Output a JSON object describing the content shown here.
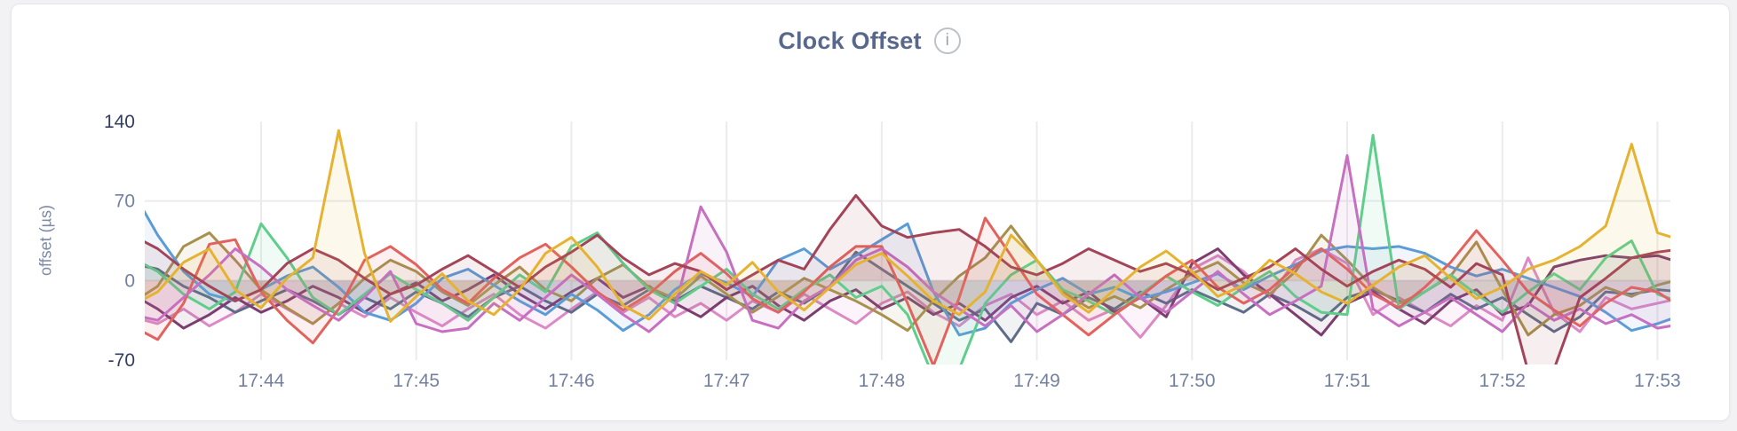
{
  "header": {
    "info_glyph": "i"
  },
  "chart_data": {
    "type": "line",
    "title": "Clock Offset",
    "xlabel": "",
    "ylabel": "offset (µs)",
    "ylim": [
      -70,
      140
    ],
    "y_ticks": [
      140,
      70,
      0,
      -70
    ],
    "x_ticks": [
      "17:44",
      "17:45",
      "17:46",
      "17:47",
      "17:48",
      "17:49",
      "17:50",
      "17:51",
      "17:52",
      "17:53"
    ],
    "x_start": "17:43:10",
    "x_interval_seconds": 10,
    "grid": "vertical gridline per minute; horizontal gridlines at 70 and 0",
    "legend": "none",
    "area_fill_opacity": 0.09,
    "series": [
      {
        "name": "pink",
        "color": "#DC8AC5",
        "values": [
          -32,
          -38,
          -25,
          -40,
          -28,
          -12,
          -25,
          -38,
          -20,
          -32,
          -15,
          -28,
          -40,
          -25,
          -12,
          -30,
          -42,
          -25,
          -10,
          -28,
          -15,
          -32,
          -20,
          -35,
          -18,
          -28,
          -12,
          -25,
          -38,
          -20,
          -10,
          -28,
          -40,
          -22,
          -12,
          -30,
          -18,
          -35,
          -25,
          -50,
          -22,
          10,
          22,
          8,
          -15,
          18,
          28,
          15,
          -30,
          -15,
          -28,
          -40,
          -22,
          -35,
          20,
          -28,
          -45,
          -15,
          -25,
          -20,
          -15
        ]
      },
      {
        "name": "slate",
        "color": "#5E6C88",
        "values": [
          15,
          10,
          -5,
          -15,
          -28,
          -18,
          -8,
          -18,
          -30,
          -15,
          -25,
          -10,
          -20,
          -32,
          -15,
          -5,
          -18,
          -28,
          -12,
          -22,
          -8,
          -18,
          -5,
          -15,
          -25,
          -10,
          -20,
          -5,
          25,
          10,
          -5,
          -20,
          -35,
          -25,
          -54,
          -20,
          -30,
          -15,
          -25,
          -10,
          -20,
          -8,
          -18,
          -28,
          -12,
          -22,
          -35,
          -15,
          -8,
          -18,
          -28,
          -12,
          -25,
          -15,
          -30,
          -45,
          -32,
          -10,
          -12,
          -8,
          -10
        ]
      },
      {
        "name": "purple",
        "color": "#7C3D6F",
        "values": [
          -12,
          -25,
          -42,
          -30,
          -15,
          -28,
          -18,
          -5,
          -15,
          -28,
          -12,
          -2,
          -18,
          -8,
          5,
          -12,
          -25,
          -10,
          2,
          -15,
          -5,
          -20,
          -32,
          -15,
          -5,
          -22,
          -35,
          -18,
          -8,
          -25,
          -15,
          -30,
          -20,
          -35,
          -15,
          -5,
          -20,
          -10,
          -28,
          -15,
          -32,
          15,
          28,
          5,
          -12,
          -30,
          -48,
          -20,
          -10,
          -25,
          -38,
          -18,
          -8,
          -30,
          -22,
          12,
          18,
          22,
          20,
          22,
          15
        ]
      },
      {
        "name": "olive",
        "color": "#A8914E",
        "values": [
          -20,
          -5,
          30,
          42,
          18,
          -8,
          -24,
          -38,
          -20,
          2,
          18,
          8,
          -10,
          -22,
          -4,
          12,
          -8,
          -18,
          2,
          14,
          -6,
          -16,
          4,
          -12,
          -28,
          -14,
          2,
          -8,
          -18,
          -30,
          -44,
          -18,
          4,
          20,
          48,
          18,
          -10,
          -24,
          -14,
          -24,
          -8,
          6,
          16,
          -2,
          -12,
          8,
          40,
          18,
          -6,
          -20,
          -10,
          4,
          34,
          -8,
          -48,
          -30,
          -22,
          -6,
          -14,
          -4,
          2
        ]
      },
      {
        "name": "blue",
        "color": "#5C9CD6",
        "values": [
          80,
          40,
          8,
          -12,
          -18,
          -8,
          4,
          12,
          -6,
          -28,
          -35,
          -20,
          2,
          10,
          -4,
          -18,
          -30,
          -12,
          -26,
          -44,
          -30,
          -8,
          6,
          -2,
          -14,
          18,
          28,
          10,
          22,
          36,
          50,
          -10,
          -48,
          -42,
          -20,
          -8,
          2,
          -12,
          -6,
          -16,
          -10,
          -2,
          6,
          -8,
          4,
          14,
          26,
          30,
          28,
          30,
          24,
          12,
          4,
          10,
          2,
          -6,
          -14,
          -28,
          -44,
          -38,
          -30
        ]
      },
      {
        "name": "green",
        "color": "#5FCE8B",
        "values": [
          20,
          8,
          -12,
          -25,
          -10,
          50,
          20,
          -15,
          -30,
          -12,
          6,
          -8,
          -20,
          -35,
          -15,
          5,
          -10,
          30,
          42,
          15,
          -8,
          -20,
          -5,
          10,
          -12,
          -25,
          -8,
          5,
          -15,
          -5,
          -30,
          -85,
          -78,
          -20,
          5,
          18,
          -8,
          -18,
          -30,
          -12,
          4,
          -10,
          -22,
          -6,
          8,
          -14,
          -28,
          -30,
          128,
          -25,
          -10,
          5,
          -12,
          -28,
          -10,
          6,
          -8,
          20,
          35,
          -12,
          -20
        ]
      },
      {
        "name": "red",
        "color": "#E2625D",
        "values": [
          -40,
          -52,
          -20,
          32,
          36,
          -10,
          -35,
          -55,
          -25,
          18,
          30,
          14,
          -8,
          -20,
          2,
          20,
          32,
          12,
          -10,
          -26,
          -12,
          8,
          24,
          6,
          -16,
          -28,
          -10,
          12,
          30,
          30,
          -20,
          -75,
          -15,
          55,
          22,
          -12,
          -30,
          -48,
          -30,
          -14,
          4,
          18,
          -6,
          -20,
          -8,
          12,
          28,
          10,
          -12,
          -24,
          -6,
          16,
          44,
          18,
          -10,
          -26,
          -40,
          -20,
          -6,
          -10,
          -25
        ]
      },
      {
        "name": "orchid",
        "color": "#C76FC0",
        "values": [
          -30,
          -35,
          -15,
          5,
          28,
          12,
          -8,
          -22,
          -35,
          -15,
          8,
          -38,
          -45,
          -42,
          -20,
          -35,
          -15,
          5,
          -12,
          -30,
          -45,
          -25,
          65,
          25,
          -35,
          -42,
          -18,
          -5,
          18,
          28,
          12,
          -10,
          -25,
          -40,
          -22,
          -45,
          -30,
          -12,
          5,
          -15,
          -28,
          -10,
          8,
          -12,
          -30,
          -18,
          -5,
          110,
          -25,
          -40,
          -28,
          -15,
          -30,
          -45,
          -20,
          -35,
          -25,
          -38,
          -30,
          -42,
          -38
        ]
      },
      {
        "name": "maroon",
        "color": "#A34459",
        "values": [
          40,
          28,
          10,
          -5,
          -18,
          -8,
          15,
          28,
          18,
          2,
          -12,
          -4,
          10,
          22,
          8,
          -6,
          12,
          25,
          40,
          20,
          5,
          15,
          8,
          -8,
          5,
          18,
          10,
          45,
          75,
          48,
          38,
          42,
          45,
          30,
          12,
          5,
          15,
          28,
          18,
          8,
          15,
          5,
          -8,
          2,
          12,
          28,
          10,
          -5,
          8,
          18,
          10,
          -6,
          15,
          5,
          -80,
          -78,
          -15,
          2,
          20,
          25,
          28
        ]
      },
      {
        "name": "gold",
        "color": "#E5B331",
        "values": [
          -22,
          -10,
          16,
          28,
          -8,
          -24,
          2,
          20,
          132,
          24,
          -36,
          -14,
          6,
          -18,
          -30,
          -8,
          24,
          38,
          12,
          -22,
          -34,
          -12,
          8,
          -4,
          16,
          -10,
          -26,
          -6,
          14,
          24,
          4,
          -18,
          -30,
          -10,
          40,
          18,
          -12,
          -28,
          -8,
          12,
          26,
          8,
          -14,
          -4,
          18,
          6,
          -10,
          -20,
          -4,
          12,
          22,
          2,
          -16,
          -6,
          10,
          18,
          30,
          48,
          120,
          42,
          35
        ]
      }
    ]
  }
}
